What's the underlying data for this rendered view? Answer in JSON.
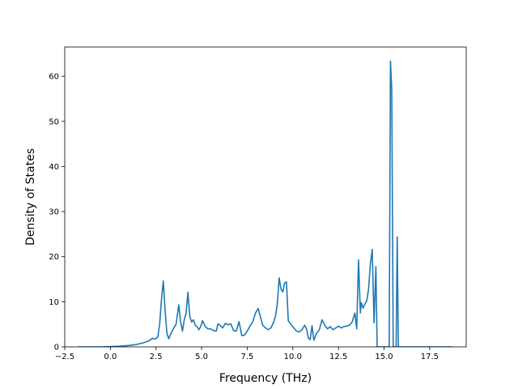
{
  "chart_data": {
    "type": "line",
    "title": "",
    "xlabel": "Frequency (THz)",
    "ylabel": "Density of States",
    "xlim": [
      -2.5,
      19.5
    ],
    "ylim": [
      0,
      66.5
    ],
    "xticks": [
      -2.5,
      0.0,
      2.5,
      5.0,
      7.5,
      10.0,
      12.5,
      15.0,
      17.5
    ],
    "xtick_labels": [
      "−2.5",
      "0.0",
      "2.5",
      "5.0",
      "7.5",
      "10.0",
      "12.5",
      "15.0",
      "17.5"
    ],
    "yticks": [
      0,
      10,
      20,
      30,
      40,
      50,
      60
    ],
    "ytick_labels": [
      "0",
      "10",
      "20",
      "30",
      "40",
      "50",
      "60"
    ],
    "grid": false,
    "legend": "none",
    "line_color": "#1f77b4",
    "series": [
      {
        "x": [
          -1.75,
          -0.5,
          0.0,
          0.5,
          1.0,
          1.4,
          1.8,
          2.1,
          2.3,
          2.45,
          2.6,
          2.7,
          2.8,
          2.9,
          3.0,
          3.1,
          3.2,
          3.3,
          3.45,
          3.6,
          3.75,
          3.85,
          3.95,
          4.05,
          4.15,
          4.25,
          4.35,
          4.45,
          4.55,
          4.65,
          4.75,
          4.85,
          4.95,
          5.05,
          5.2,
          5.35,
          5.5,
          5.65,
          5.8,
          5.9,
          6.0,
          6.15,
          6.3,
          6.45,
          6.6,
          6.75,
          6.9,
          7.05,
          7.2,
          7.35,
          7.5,
          7.65,
          7.8,
          7.95,
          8.1,
          8.2,
          8.35,
          8.5,
          8.65,
          8.8,
          8.95,
          9.05,
          9.15,
          9.25,
          9.35,
          9.45,
          9.55,
          9.65,
          9.75,
          9.9,
          10.05,
          10.2,
          10.35,
          10.5,
          10.65,
          10.75,
          10.85,
          10.95,
          11.05,
          11.15,
          11.3,
          11.45,
          11.6,
          11.75,
          11.9,
          12.05,
          12.2,
          12.35,
          12.5,
          12.65,
          12.8,
          12.95,
          13.1,
          13.25,
          13.4,
          13.5,
          13.6,
          13.7,
          13.75,
          13.85,
          13.95,
          14.05,
          14.15,
          14.25,
          14.35,
          14.45,
          14.55,
          14.62,
          14.68,
          14.72,
          14.78,
          14.83,
          14.9,
          15.0,
          15.1,
          15.2,
          15.28,
          15.35,
          15.42,
          15.5,
          15.58,
          15.66,
          15.72,
          15.78,
          15.85,
          15.92,
          16.0,
          17.0,
          18.0,
          18.75
        ],
        "y": [
          0,
          0,
          0.05,
          0.15,
          0.3,
          0.5,
          0.9,
          1.3,
          1.9,
          1.7,
          2.2,
          5.0,
          10.5,
          14.6,
          8.0,
          3.0,
          1.8,
          2.8,
          4.0,
          5.0,
          9.3,
          5.5,
          3.5,
          6.0,
          7.5,
          12.1,
          6.8,
          5.5,
          6.0,
          4.8,
          4.5,
          3.8,
          4.5,
          5.8,
          4.5,
          4.0,
          4.0,
          3.6,
          3.5,
          5.1,
          4.8,
          4.2,
          5.2,
          4.9,
          5.1,
          3.6,
          3.5,
          5.6,
          2.5,
          2.6,
          3.5,
          4.6,
          5.5,
          7.5,
          8.5,
          7.0,
          4.8,
          4.2,
          3.8,
          4.2,
          5.5,
          6.8,
          9.5,
          15.3,
          12.8,
          12.2,
          14.2,
          14.4,
          5.8,
          5.0,
          4.2,
          3.5,
          3.3,
          3.8,
          4.8,
          4.0,
          2.0,
          1.6,
          4.7,
          1.5,
          3.0,
          3.8,
          6.0,
          4.8,
          4.0,
          4.5,
          3.8,
          4.2,
          4.6,
          4.2,
          4.5,
          4.6,
          4.8,
          5.5,
          7.5,
          4.0,
          19.3,
          7.5,
          9.8,
          8.6,
          9.5,
          10.2,
          12.8,
          18.5,
          21.6,
          5.3,
          17.8,
          0,
          0,
          0,
          0,
          0,
          0,
          0,
          0,
          0,
          0,
          63.4,
          57.0,
          0,
          0,
          0,
          24.4,
          0,
          0,
          0,
          0,
          0,
          0,
          0
        ]
      }
    ]
  }
}
